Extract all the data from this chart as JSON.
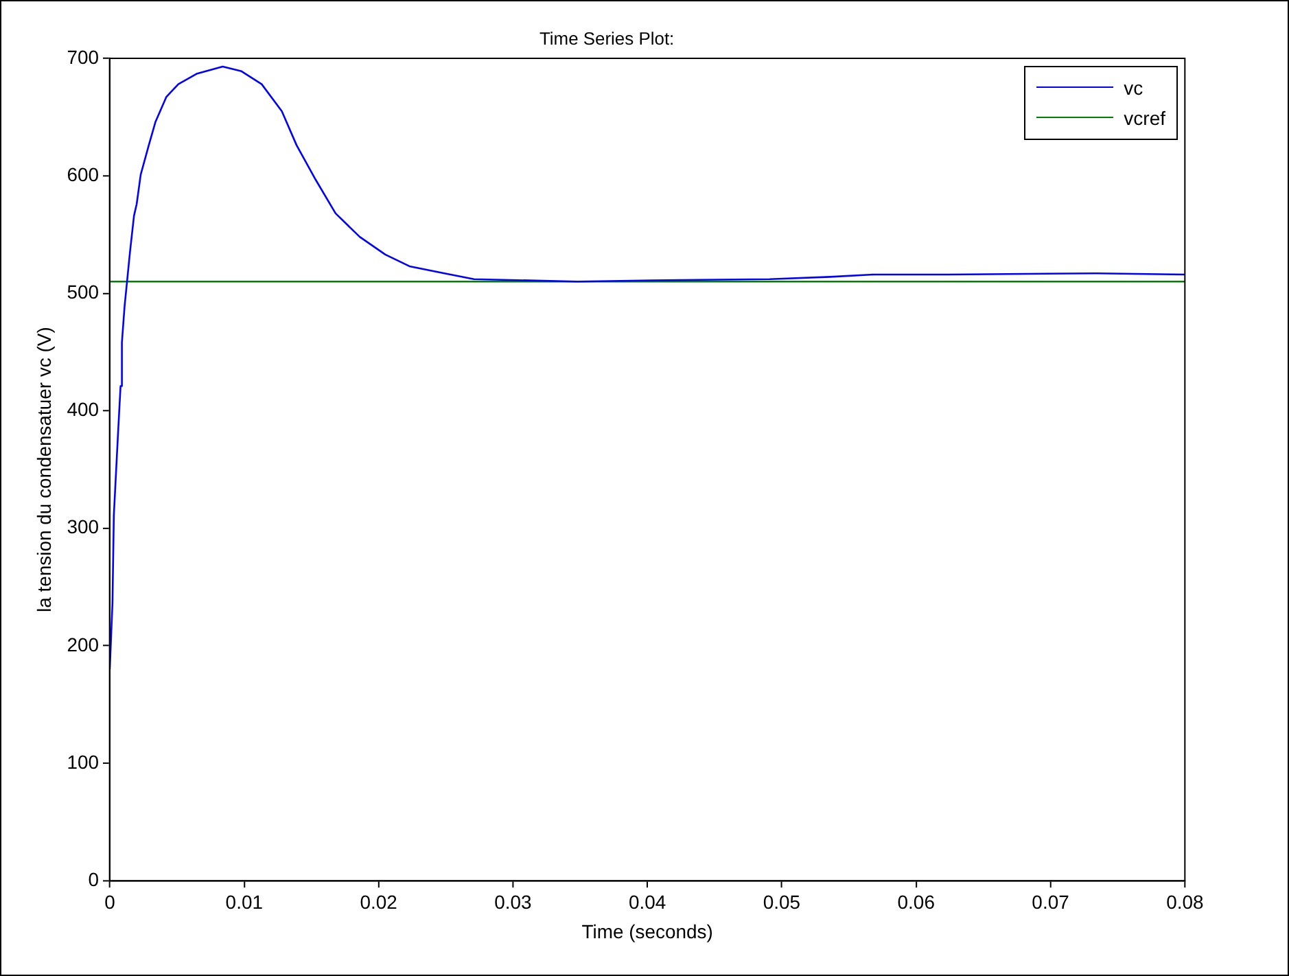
{
  "chart_data": {
    "type": "line",
    "title": "Time Series Plot:",
    "xlabel": "Time (seconds)",
    "ylabel": "la tension du condensatuer vc (V)",
    "xlim": [
      0,
      0.08
    ],
    "xticks": [
      0,
      0.01,
      0.02,
      0.03,
      0.04,
      0.05,
      0.06,
      0.07,
      0.08
    ],
    "ylim": [
      0,
      700
    ],
    "yticks": [
      0,
      100,
      200,
      300,
      400,
      500,
      600,
      700
    ],
    "grid": false,
    "legend": "top right",
    "marker": "none",
    "line_style": "solid",
    "series": [
      {
        "name": "vc",
        "color": "#0000ff",
        "x": [
          0,
          0.0002,
          0.0003,
          0.0006,
          0.0008,
          0.0009,
          0.0011,
          0.0013,
          0.0015,
          0.0018,
          0.002,
          0.0023,
          0.0029,
          0.0034,
          0.0042,
          0.0051,
          0.0065,
          0.0084,
          0.0098,
          0.0113,
          0.0128,
          0.0139,
          0.0153,
          0.0168,
          0.0186,
          0.0205,
          0.0223,
          0.0249,
          0.0271,
          0.0348,
          0.0403,
          0.0491,
          0.0536,
          0.0569,
          0.0624,
          0.0734,
          0.08
        ],
        "values": [
          180,
          237,
          311,
          378,
          421,
          458,
          489,
          512,
          535,
          566,
          576,
          601,
          626,
          646,
          667,
          678,
          687,
          693,
          689,
          678,
          655,
          626,
          597,
          568,
          548,
          533,
          523,
          517,
          512,
          510,
          511,
          512,
          514,
          516,
          516,
          517,
          516
        ]
      },
      {
        "name": "vcref",
        "color": "#008000",
        "x": [
          0,
          0.08
        ],
        "values": [
          510,
          510
        ]
      }
    ]
  }
}
